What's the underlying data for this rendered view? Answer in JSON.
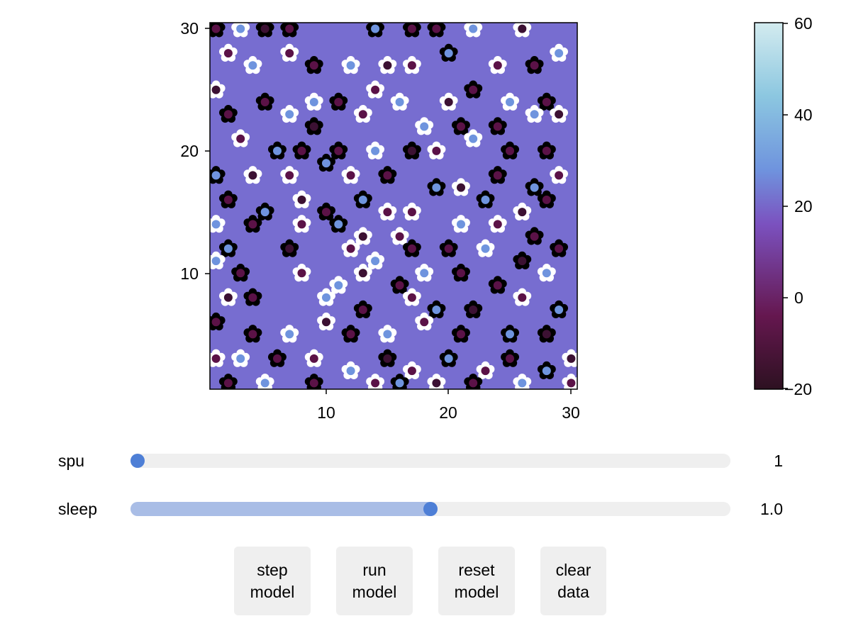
{
  "chart_data": {
    "type": "scatter",
    "x_ticks": [
      "10",
      "20",
      "30"
    ],
    "y_ticks": [
      "10",
      "20",
      "30"
    ],
    "xlim": [
      0.5,
      30.5
    ],
    "ylim": [
      0.5,
      30.5
    ],
    "background_color": "#776dd0",
    "colorbar": {
      "ticks": [
        "60",
        "40",
        "20",
        "0",
        "−20"
      ],
      "range": [
        -20,
        60
      ],
      "colors": [
        "#2d1121",
        "#65174f",
        "#7b51bf",
        "#6f94de",
        "#8cc7e0",
        "#d3ebef"
      ]
    },
    "legend_encoding": {
      "white_petals": "white daisy",
      "black_petals": "black daisy",
      "center_color": "age/temperature value on colorbar"
    },
    "daisies": [
      {
        "x": 1,
        "y": 30,
        "type": "black"
      },
      {
        "x": 3,
        "y": 30,
        "type": "white"
      },
      {
        "x": 5,
        "y": 30,
        "type": "black"
      },
      {
        "x": 7,
        "y": 30,
        "type": "black"
      },
      {
        "x": 14,
        "y": 30,
        "type": "black"
      },
      {
        "x": 17,
        "y": 30,
        "type": "black"
      },
      {
        "x": 19,
        "y": 30,
        "type": "black"
      },
      {
        "x": 22,
        "y": 30,
        "type": "white"
      },
      {
        "x": 26,
        "y": 30,
        "type": "white"
      },
      {
        "x": 2,
        "y": 28,
        "type": "white"
      },
      {
        "x": 4,
        "y": 27,
        "type": "white"
      },
      {
        "x": 7,
        "y": 28,
        "type": "white"
      },
      {
        "x": 9,
        "y": 27,
        "type": "black"
      },
      {
        "x": 12,
        "y": 27,
        "type": "white"
      },
      {
        "x": 15,
        "y": 27,
        "type": "white"
      },
      {
        "x": 17,
        "y": 27,
        "type": "white"
      },
      {
        "x": 20,
        "y": 28,
        "type": "black"
      },
      {
        "x": 24,
        "y": 27,
        "type": "white"
      },
      {
        "x": 27,
        "y": 27,
        "type": "black"
      },
      {
        "x": 29,
        "y": 28,
        "type": "white"
      },
      {
        "x": 1,
        "y": 25,
        "type": "white"
      },
      {
        "x": 5,
        "y": 24,
        "type": "black"
      },
      {
        "x": 9,
        "y": 24,
        "type": "white"
      },
      {
        "x": 11,
        "y": 24,
        "type": "black"
      },
      {
        "x": 14,
        "y": 25,
        "type": "white"
      },
      {
        "x": 16,
        "y": 24,
        "type": "white"
      },
      {
        "x": 20,
        "y": 24,
        "type": "white"
      },
      {
        "x": 22,
        "y": 25,
        "type": "black"
      },
      {
        "x": 25,
        "y": 24,
        "type": "white"
      },
      {
        "x": 28,
        "y": 24,
        "type": "black"
      },
      {
        "x": 2,
        "y": 23,
        "type": "black"
      },
      {
        "x": 7,
        "y": 23,
        "type": "white"
      },
      {
        "x": 9,
        "y": 22,
        "type": "black"
      },
      {
        "x": 13,
        "y": 23,
        "type": "white"
      },
      {
        "x": 18,
        "y": 22,
        "type": "white"
      },
      {
        "x": 21,
        "y": 22,
        "type": "black"
      },
      {
        "x": 24,
        "y": 22,
        "type": "black"
      },
      {
        "x": 27,
        "y": 23,
        "type": "white"
      },
      {
        "x": 29,
        "y": 23,
        "type": "white"
      },
      {
        "x": 3,
        "y": 21,
        "type": "white"
      },
      {
        "x": 6,
        "y": 20,
        "type": "black"
      },
      {
        "x": 8,
        "y": 20,
        "type": "black"
      },
      {
        "x": 11,
        "y": 20,
        "type": "black"
      },
      {
        "x": 14,
        "y": 20,
        "type": "white"
      },
      {
        "x": 17,
        "y": 20,
        "type": "black"
      },
      {
        "x": 19,
        "y": 20,
        "type": "white"
      },
      {
        "x": 22,
        "y": 21,
        "type": "white"
      },
      {
        "x": 25,
        "y": 20,
        "type": "black"
      },
      {
        "x": 28,
        "y": 20,
        "type": "black"
      },
      {
        "x": 1,
        "y": 18,
        "type": "black"
      },
      {
        "x": 4,
        "y": 18,
        "type": "white"
      },
      {
        "x": 7,
        "y": 18,
        "type": "white"
      },
      {
        "x": 10,
        "y": 19,
        "type": "black"
      },
      {
        "x": 12,
        "y": 18,
        "type": "white"
      },
      {
        "x": 15,
        "y": 18,
        "type": "black"
      },
      {
        "x": 19,
        "y": 17,
        "type": "black"
      },
      {
        "x": 21,
        "y": 17,
        "type": "white"
      },
      {
        "x": 24,
        "y": 18,
        "type": "black"
      },
      {
        "x": 27,
        "y": 17,
        "type": "black"
      },
      {
        "x": 29,
        "y": 18,
        "type": "white"
      },
      {
        "x": 2,
        "y": 16,
        "type": "black"
      },
      {
        "x": 5,
        "y": 15,
        "type": "black"
      },
      {
        "x": 8,
        "y": 16,
        "type": "white"
      },
      {
        "x": 10,
        "y": 15,
        "type": "black"
      },
      {
        "x": 13,
        "y": 16,
        "type": "black"
      },
      {
        "x": 15,
        "y": 15,
        "type": "white"
      },
      {
        "x": 17,
        "y": 15,
        "type": "white"
      },
      {
        "x": 23,
        "y": 16,
        "type": "black"
      },
      {
        "x": 26,
        "y": 15,
        "type": "white"
      },
      {
        "x": 28,
        "y": 16,
        "type": "black"
      },
      {
        "x": 1,
        "y": 14,
        "type": "white"
      },
      {
        "x": 4,
        "y": 14,
        "type": "black"
      },
      {
        "x": 8,
        "y": 14,
        "type": "white"
      },
      {
        "x": 11,
        "y": 14,
        "type": "black"
      },
      {
        "x": 13,
        "y": 13,
        "type": "white"
      },
      {
        "x": 16,
        "y": 13,
        "type": "white"
      },
      {
        "x": 21,
        "y": 14,
        "type": "white"
      },
      {
        "x": 24,
        "y": 14,
        "type": "white"
      },
      {
        "x": 27,
        "y": 13,
        "type": "black"
      },
      {
        "x": 2,
        "y": 12,
        "type": "black"
      },
      {
        "x": 7,
        "y": 12,
        "type": "black"
      },
      {
        "x": 12,
        "y": 12,
        "type": "white"
      },
      {
        "x": 14,
        "y": 11,
        "type": "white"
      },
      {
        "x": 17,
        "y": 12,
        "type": "black"
      },
      {
        "x": 20,
        "y": 12,
        "type": "black"
      },
      {
        "x": 23,
        "y": 12,
        "type": "white"
      },
      {
        "x": 26,
        "y": 11,
        "type": "black"
      },
      {
        "x": 29,
        "y": 12,
        "type": "black"
      },
      {
        "x": 1,
        "y": 11,
        "type": "white"
      },
      {
        "x": 3,
        "y": 10,
        "type": "black"
      },
      {
        "x": 8,
        "y": 10,
        "type": "white"
      },
      {
        "x": 11,
        "y": 9,
        "type": "white"
      },
      {
        "x": 13,
        "y": 10,
        "type": "white"
      },
      {
        "x": 16,
        "y": 9,
        "type": "black"
      },
      {
        "x": 18,
        "y": 10,
        "type": "white"
      },
      {
        "x": 21,
        "y": 10,
        "type": "black"
      },
      {
        "x": 24,
        "y": 9,
        "type": "black"
      },
      {
        "x": 28,
        "y": 10,
        "type": "white"
      },
      {
        "x": 2,
        "y": 8,
        "type": "white"
      },
      {
        "x": 4,
        "y": 8,
        "type": "black"
      },
      {
        "x": 10,
        "y": 8,
        "type": "white"
      },
      {
        "x": 13,
        "y": 7,
        "type": "black"
      },
      {
        "x": 17,
        "y": 8,
        "type": "white"
      },
      {
        "x": 19,
        "y": 7,
        "type": "black"
      },
      {
        "x": 22,
        "y": 7,
        "type": "black"
      },
      {
        "x": 26,
        "y": 8,
        "type": "white"
      },
      {
        "x": 29,
        "y": 7,
        "type": "black"
      },
      {
        "x": 1,
        "y": 6,
        "type": "black"
      },
      {
        "x": 4,
        "y": 5,
        "type": "black"
      },
      {
        "x": 7,
        "y": 5,
        "type": "white"
      },
      {
        "x": 10,
        "y": 6,
        "type": "white"
      },
      {
        "x": 12,
        "y": 5,
        "type": "black"
      },
      {
        "x": 15,
        "y": 5,
        "type": "white"
      },
      {
        "x": 18,
        "y": 6,
        "type": "white"
      },
      {
        "x": 21,
        "y": 5,
        "type": "black"
      },
      {
        "x": 25,
        "y": 5,
        "type": "black"
      },
      {
        "x": 28,
        "y": 5,
        "type": "black"
      },
      {
        "x": 1,
        "y": 3,
        "type": "white"
      },
      {
        "x": 3,
        "y": 3,
        "type": "white"
      },
      {
        "x": 6,
        "y": 3,
        "type": "black"
      },
      {
        "x": 9,
        "y": 3,
        "type": "white"
      },
      {
        "x": 12,
        "y": 2,
        "type": "white"
      },
      {
        "x": 15,
        "y": 3,
        "type": "black"
      },
      {
        "x": 17,
        "y": 2,
        "type": "white"
      },
      {
        "x": 20,
        "y": 3,
        "type": "black"
      },
      {
        "x": 23,
        "y": 2,
        "type": "white"
      },
      {
        "x": 25,
        "y": 3,
        "type": "black"
      },
      {
        "x": 28,
        "y": 2,
        "type": "black"
      },
      {
        "x": 30,
        "y": 3,
        "type": "white"
      },
      {
        "x": 2,
        "y": 1,
        "type": "black"
      },
      {
        "x": 5,
        "y": 1,
        "type": "white"
      },
      {
        "x": 9,
        "y": 1,
        "type": "black"
      },
      {
        "x": 14,
        "y": 1,
        "type": "white"
      },
      {
        "x": 16,
        "y": 1,
        "type": "black"
      },
      {
        "x": 19,
        "y": 1,
        "type": "white"
      },
      {
        "x": 22,
        "y": 1,
        "type": "black"
      },
      {
        "x": 26,
        "y": 1,
        "type": "white"
      },
      {
        "x": 30,
        "y": 1,
        "type": "white"
      }
    ]
  },
  "controls": {
    "sliders": [
      {
        "label": "spu",
        "value_text": "1",
        "fraction": 0.0
      },
      {
        "label": "sleep",
        "value_text": "1.0",
        "fraction": 0.5
      }
    ],
    "buttons": [
      {
        "line1": "step",
        "line2": "model"
      },
      {
        "line1": "run",
        "line2": "model"
      },
      {
        "line1": "reset",
        "line2": "model"
      },
      {
        "line1": "clear",
        "line2": "data"
      }
    ]
  },
  "colors": {
    "slider_track": "#efefef",
    "slider_fill": "#a9bde6",
    "slider_knob": "#4e7fd6",
    "button_bg": "#efefef"
  }
}
